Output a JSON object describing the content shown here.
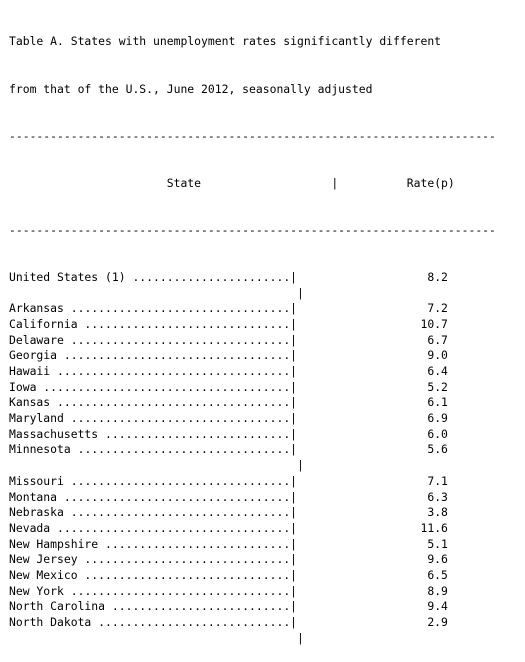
{
  "title_lines": [
    "Table A. States with unemployment rates significantly different",
    "from that of the U.S., June 2012, seasonally adjusted"
  ],
  "columns": {
    "state": "State",
    "rate": "Rate(p)"
  },
  "rows": [
    {
      "state": "United States (1)",
      "rate": "8.2"
    },
    null,
    {
      "state": "Arkansas",
      "rate": "7.2"
    },
    {
      "state": "California",
      "rate": "10.7"
    },
    {
      "state": "Delaware",
      "rate": "6.7"
    },
    {
      "state": "Georgia",
      "rate": "9.0"
    },
    {
      "state": "Hawaii",
      "rate": "6.4"
    },
    {
      "state": "Iowa",
      "rate": "5.2"
    },
    {
      "state": "Kansas",
      "rate": "6.1"
    },
    {
      "state": "Maryland",
      "rate": "6.9"
    },
    {
      "state": "Massachusetts",
      "rate": "6.0"
    },
    {
      "state": "Minnesota",
      "rate": "5.6"
    },
    null,
    {
      "state": "Missouri",
      "rate": "7.1"
    },
    {
      "state": "Montana",
      "rate": "6.3"
    },
    {
      "state": "Nebraska",
      "rate": "3.8"
    },
    {
      "state": "Nevada",
      "rate": "11.6"
    },
    {
      "state": "New Hampshire",
      "rate": "5.1"
    },
    {
      "state": "New Jersey",
      "rate": "9.6"
    },
    {
      "state": "New Mexico",
      "rate": "6.5"
    },
    {
      "state": "New York",
      "rate": "8.9"
    },
    {
      "state": "North Carolina",
      "rate": "9.4"
    },
    {
      "state": "North Dakota",
      "rate": "2.9"
    },
    null
  ]
}
